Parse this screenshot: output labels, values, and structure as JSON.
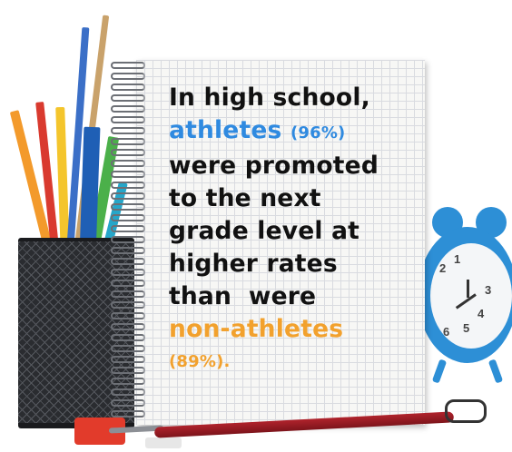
{
  "message": {
    "line1": "In high school,",
    "athletes_word": "athletes",
    "athletes_pct": "(96%)",
    "line3": "were promoted",
    "line4": "to the next",
    "line5": "grade level at",
    "line6": "higher rates",
    "line7": "than  were",
    "non_athletes_word": "non-athletes",
    "non_athletes_pct": "(89%)."
  },
  "clock_numbers": [
    "2",
    "1",
    "3",
    "4",
    "5",
    "6"
  ],
  "colors": {
    "athletes": "#2f8ae0",
    "non_athletes": "#f2a12d",
    "text": "#111111",
    "clock": "#2d8fd6"
  },
  "icons": [
    "spiral-notebook-icon",
    "pencil-cup-icon",
    "alarm-clock-icon",
    "pen-icon",
    "sharpener-icon",
    "binder-clip-icon"
  ]
}
